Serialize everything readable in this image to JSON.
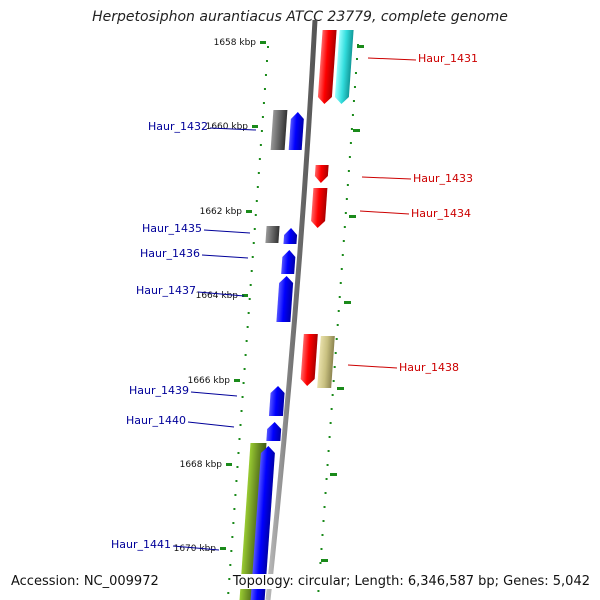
{
  "title": "Herpetosiphon aurantiacus ATCC 23779, complete genome",
  "footer": {
    "accession": "Accession: NC_009972",
    "summary": "Topology: circular; Length: 6,346,587 bp; Genes: 5,042"
  },
  "scale_ticks": [
    "1658 kbp",
    "1660 kbp",
    "1662 kbp",
    "1664 kbp",
    "1666 kbp",
    "1668 kbp",
    "1670 kbp"
  ],
  "genes": [
    {
      "label": "Haur_1431",
      "strand": "plus",
      "color": "#cc0000"
    },
    {
      "label": "Haur_1432",
      "strand": "minus",
      "color": "#000099"
    },
    {
      "label": "Haur_1433",
      "strand": "plus",
      "color": "#cc0000"
    },
    {
      "label": "Haur_1434",
      "strand": "plus",
      "color": "#cc0000"
    },
    {
      "label": "Haur_1435",
      "strand": "minus",
      "color": "#000099"
    },
    {
      "label": "Haur_1436",
      "strand": "minus",
      "color": "#000099"
    },
    {
      "label": "Haur_1437",
      "strand": "minus",
      "color": "#000099"
    },
    {
      "label": "Haur_1438",
      "strand": "plus",
      "color": "#cc0000"
    },
    {
      "label": "Haur_1439",
      "strand": "minus",
      "color": "#000099"
    },
    {
      "label": "Haur_1440",
      "strand": "minus",
      "color": "#000099"
    },
    {
      "label": "Haur_1441",
      "strand": "minus",
      "color": "#000099"
    }
  ],
  "colors": {
    "plus_gene": "#ff0000",
    "minus_gene": "#0000ff",
    "other_gene_gray": "#666666",
    "cyan_feature": "#33dddd",
    "khaki_feature": "#c8c080",
    "olive_feature": "#6b8e23",
    "backbone": "#888888",
    "tick_marks": "#1a8a1a"
  }
}
